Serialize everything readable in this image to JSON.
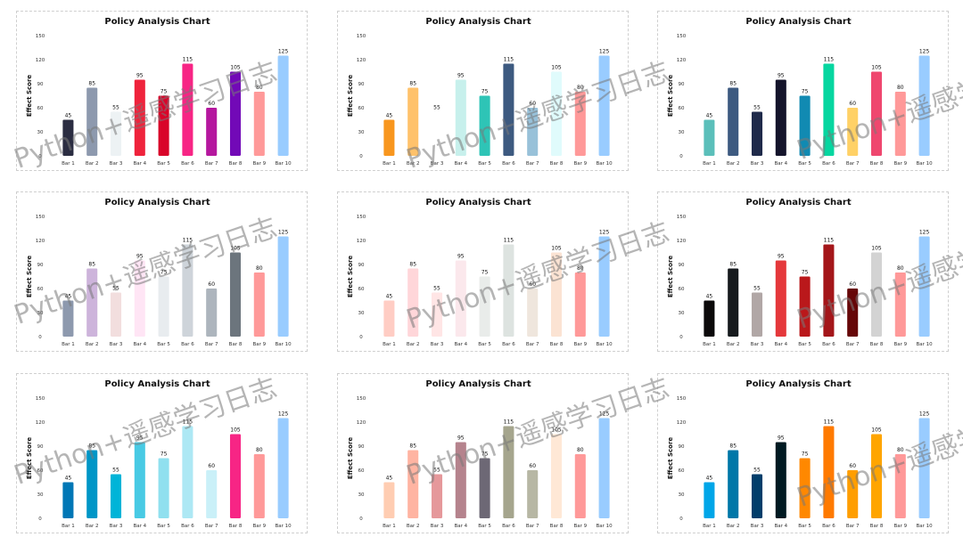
{
  "watermark": "Python+遥感学习日志",
  "chart_data": [
    {
      "type": "bar",
      "title": "Policy Analysis Chart",
      "ylabel": "Effect Score",
      "categories": [
        "Bar 1",
        "Bar 2",
        "Bar 3",
        "Bar 4",
        "Bar 5",
        "Bar 6",
        "Bar 7",
        "Bar 8",
        "Bar 9",
        "Bar 10"
      ],
      "values": [
        45,
        85,
        55,
        95,
        75,
        115,
        60,
        105,
        80,
        125
      ],
      "yticks": [
        0,
        30,
        60,
        90,
        120,
        150
      ],
      "ylim": [
        0,
        150
      ],
      "colors": [
        "#2b2d42",
        "#8d99ae",
        "#edf2f4",
        "#ef233c",
        "#d90429",
        "#f72585",
        "#b5179e",
        "#7209b7",
        "#ff9999",
        "#99ccff"
      ]
    },
    {
      "type": "bar",
      "title": "Policy Analysis Chart",
      "ylabel": "Effect Score",
      "categories": [
        "Bar 1",
        "Bar 2",
        "Bar 3",
        "Bar 4",
        "Bar 5",
        "Bar 6",
        "Bar 7",
        "Bar 8",
        "Bar 9",
        "Bar 10"
      ],
      "values": [
        45,
        85,
        55,
        95,
        75,
        115,
        60,
        105,
        80,
        125
      ],
      "yticks": [
        0,
        30,
        60,
        90,
        120,
        150
      ],
      "ylim": [
        0,
        150
      ],
      "colors": [
        "#f8961e",
        "#ffc26b",
        "#ffffff",
        "#c7f0ec",
        "#2ec4b6",
        "#3d5a80",
        "#98c1d9",
        "#e0fbfc",
        "#ff9999",
        "#99ccff"
      ]
    },
    {
      "type": "bar",
      "title": "Policy Analysis Chart",
      "ylabel": "Effect Score",
      "categories": [
        "Bar 1",
        "Bar 2",
        "Bar 3",
        "Bar 4",
        "Bar 5",
        "Bar 6",
        "Bar 7",
        "Bar 8",
        "Bar 9",
        "Bar 10"
      ],
      "values": [
        45,
        85,
        55,
        95,
        75,
        115,
        60,
        105,
        80,
        125
      ],
      "yticks": [
        0,
        30,
        60,
        90,
        120,
        150
      ],
      "ylim": [
        0,
        150
      ],
      "colors": [
        "#5bbfba",
        "#3d5a80",
        "#1f2a4a",
        "#14142b",
        "#118ab2",
        "#06d6a0",
        "#ffd166",
        "#ef476f",
        "#ff9999",
        "#99ccff"
      ]
    },
    {
      "type": "bar",
      "title": "Policy Analysis Chart",
      "ylabel": "Effect Score",
      "categories": [
        "Bar 1",
        "Bar 2",
        "Bar 3",
        "Bar 4",
        "Bar 5",
        "Bar 6",
        "Bar 7",
        "Bar 8",
        "Bar 9",
        "Bar 10"
      ],
      "values": [
        45,
        85,
        55,
        95,
        75,
        115,
        60,
        105,
        80,
        125
      ],
      "yticks": [
        0,
        30,
        60,
        90,
        120,
        150
      ],
      "ylim": [
        0,
        150
      ],
      "colors": [
        "#8d99ae",
        "#cdb4db",
        "#f2dede",
        "#ffe5f5",
        "#e8ecef",
        "#ced4da",
        "#adb5bd",
        "#6c757d",
        "#ff9999",
        "#99ccff"
      ]
    },
    {
      "type": "bar",
      "title": "Policy Analysis Chart",
      "ylabel": "Effect Score",
      "categories": [
        "Bar 1",
        "Bar 2",
        "Bar 3",
        "Bar 4",
        "Bar 5",
        "Bar 6",
        "Bar 7",
        "Bar 8",
        "Bar 9",
        "Bar 10"
      ],
      "values": [
        45,
        85,
        55,
        95,
        75,
        115,
        60,
        105,
        80,
        125
      ],
      "yticks": [
        0,
        30,
        60,
        90,
        120,
        150
      ],
      "ylim": [
        0,
        150
      ],
      "colors": [
        "#ffcdc4",
        "#ffd6d9",
        "#ffe5e5",
        "#fbe8ec",
        "#e9ecea",
        "#dde3e0",
        "#efe6dd",
        "#fbe3d3",
        "#ff9999",
        "#99ccff"
      ]
    },
    {
      "type": "bar",
      "title": "Policy Analysis Chart",
      "ylabel": "Effect Score",
      "categories": [
        "Bar 1",
        "Bar 2",
        "Bar 3",
        "Bar 4",
        "Bar 5",
        "Bar 6",
        "Bar 7",
        "Bar 8",
        "Bar 9",
        "Bar 10"
      ],
      "values": [
        45,
        85,
        55,
        95,
        75,
        115,
        60,
        105,
        80,
        125
      ],
      "yticks": [
        0,
        30,
        60,
        90,
        120,
        150
      ],
      "ylim": [
        0,
        150
      ],
      "colors": [
        "#0b090a",
        "#161a1d",
        "#b1a7a6",
        "#e5383b",
        "#ba181b",
        "#a4161a",
        "#660708",
        "#d3d3d3",
        "#ff9999",
        "#99ccff"
      ]
    },
    {
      "type": "bar",
      "title": "Policy Analysis Chart",
      "ylabel": "Effect Score",
      "categories": [
        "Bar 1",
        "Bar 2",
        "Bar 3",
        "Bar 4",
        "Bar 5",
        "Bar 6",
        "Bar 7",
        "Bar 8",
        "Bar 9",
        "Bar 10"
      ],
      "values": [
        45,
        85,
        55,
        95,
        75,
        115,
        60,
        105,
        80,
        125
      ],
      "yticks": [
        0,
        30,
        60,
        90,
        120,
        150
      ],
      "ylim": [
        0,
        150
      ],
      "colors": [
        "#0077b6",
        "#0096c7",
        "#00b4d8",
        "#48cae4",
        "#90e0ef",
        "#ade8f4",
        "#caf0f8",
        "#f72585",
        "#ff9999",
        "#99ccff"
      ]
    },
    {
      "type": "bar",
      "title": "Policy Analysis Chart",
      "ylabel": "Effect Score",
      "categories": [
        "Bar 1",
        "Bar 2",
        "Bar 3",
        "Bar 4",
        "Bar 5",
        "Bar 6",
        "Bar 7",
        "Bar 8",
        "Bar 9",
        "Bar 10"
      ],
      "values": [
        45,
        85,
        55,
        95,
        75,
        115,
        60,
        105,
        80,
        125
      ],
      "yticks": [
        0,
        30,
        60,
        90,
        120,
        150
      ],
      "ylim": [
        0,
        150
      ],
      "colors": [
        "#ffcdb2",
        "#ffb4a2",
        "#e5989b",
        "#b5838d",
        "#6d6875",
        "#a5a58d",
        "#b7b7a4",
        "#ffe8d6",
        "#ff9999",
        "#99ccff"
      ]
    },
    {
      "type": "bar",
      "title": "Policy Analysis Chart",
      "ylabel": "Effect Score",
      "categories": [
        "Bar 1",
        "Bar 2",
        "Bar 3",
        "Bar 4",
        "Bar 5",
        "Bar 6",
        "Bar 7",
        "Bar 8",
        "Bar 9",
        "Bar 10"
      ],
      "values": [
        45,
        85,
        55,
        95,
        75,
        115,
        60,
        105,
        80,
        125
      ],
      "yticks": [
        0,
        30,
        60,
        90,
        120,
        150
      ],
      "ylim": [
        0,
        150
      ],
      "colors": [
        "#00a6e8",
        "#0077a8",
        "#023e6b",
        "#001a22",
        "#ff8800",
        "#ff7a00",
        "#ff9e00",
        "#ffa500",
        "#ff9999",
        "#99ccff"
      ]
    }
  ]
}
